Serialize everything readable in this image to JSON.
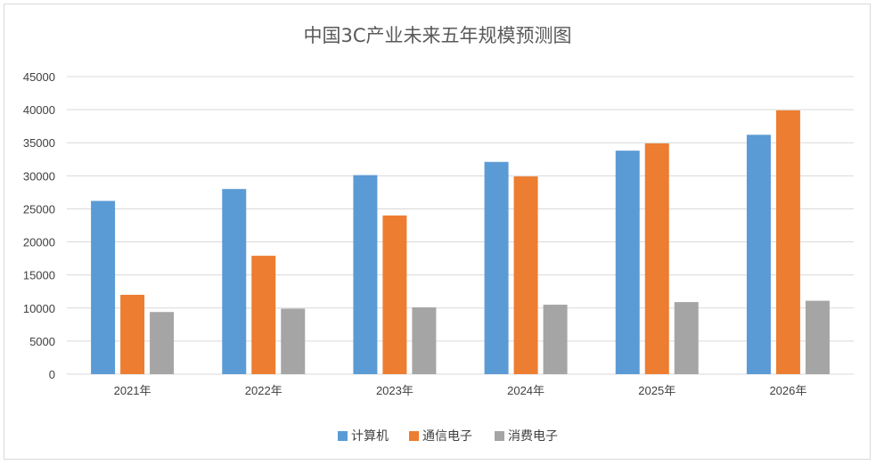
{
  "chart_data": {
    "type": "bar",
    "title": "中国3C产业未来五年规模预测图",
    "categories": [
      "2021年",
      "2022年",
      "2023年",
      "2024年",
      "2025年",
      "2026年"
    ],
    "series": [
      {
        "name": "计算机",
        "color": "#5b9bd5",
        "values": [
          26200,
          28000,
          30100,
          32100,
          33800,
          36200
        ]
      },
      {
        "name": "通信电子",
        "color": "#ed7d31",
        "values": [
          12000,
          17900,
          24000,
          29900,
          34900,
          39900
        ]
      },
      {
        "name": "消费电子",
        "color": "#a5a5a5",
        "values": [
          9400,
          9900,
          10100,
          10500,
          10900,
          11100
        ]
      }
    ],
    "yticks": [
      "0",
      "5000",
      "10000",
      "15000",
      "20000",
      "25000",
      "30000",
      "35000",
      "40000",
      "45000"
    ],
    "ylim": [
      0,
      45000
    ],
    "grid": true,
    "legend_position": "bottom"
  }
}
